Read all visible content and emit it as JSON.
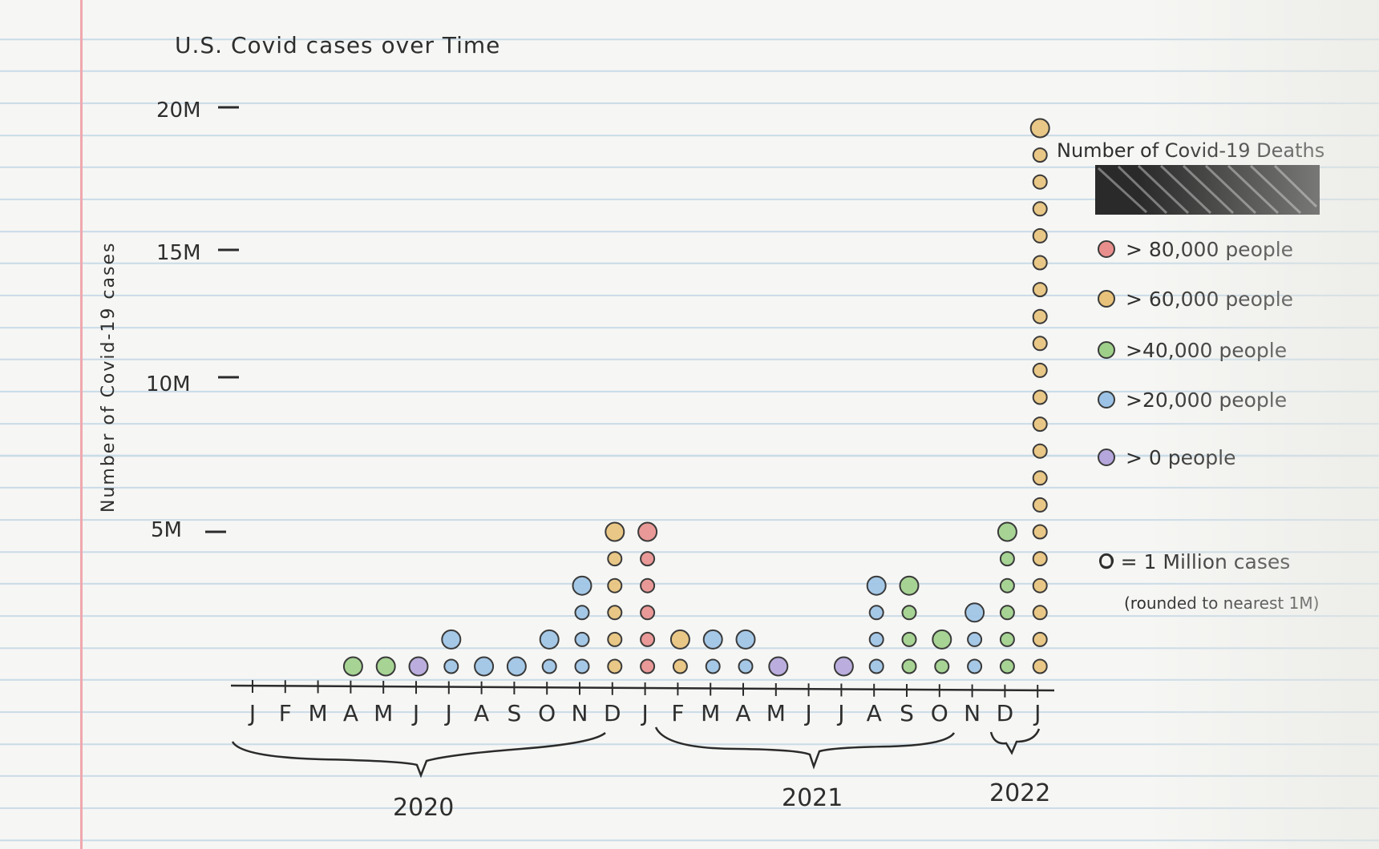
{
  "chart_data": {
    "type": "scatter",
    "title": "U.S. Covid cases over Time",
    "ylabel": "Number of Covid-19 cases",
    "y_ticks": [
      "20M",
      "15M",
      "10M",
      "5M"
    ],
    "y_tick_values": [
      20,
      15,
      10,
      5
    ],
    "x_tick_labels": [
      "J",
      "F",
      "M",
      "A",
      "M",
      "J",
      "J",
      "A",
      "S",
      "O",
      "N",
      "D",
      "J",
      "F",
      "M",
      "A",
      "M",
      "J",
      "J",
      "A",
      "S",
      "O",
      "N",
      "D",
      "J"
    ],
    "year_labels": [
      "2020",
      "2021",
      "2022"
    ],
    "legend": {
      "title": "Number of Covid-19 Deaths",
      "entries": [
        {
          "label": "> 80,000 people",
          "color": "#e88f8d"
        },
        {
          "label": "> 60,000 people",
          "color": "#e8c27a"
        },
        {
          "label": ">40,000 people",
          "color": "#9fd08a"
        },
        {
          "label": ">20,000 people",
          "color": "#9cc3e6"
        },
        {
          "label": "> 0 people",
          "color": "#b5a6dc"
        }
      ],
      "note": "O = 1 Million cases",
      "note_sub": "(rounded to nearest 1M)"
    },
    "unit": "1 circle = 1 million cases",
    "points": [
      {
        "month": "Apr 2020",
        "cases_millions": 1,
        "deaths_level": ">40,000 people"
      },
      {
        "month": "May 2020",
        "cases_millions": 1,
        "deaths_level": ">40,000 people"
      },
      {
        "month": "Jun 2020",
        "cases_millions": 1,
        "deaths_level": "> 0 people"
      },
      {
        "month": "Jul 2020",
        "cases_millions": 2,
        "deaths_level": ">20,000 people"
      },
      {
        "month": "Aug 2020",
        "cases_millions": 1,
        "deaths_level": ">20,000 people"
      },
      {
        "month": "Sep 2020",
        "cases_millions": 1,
        "deaths_level": ">20,000 people"
      },
      {
        "month": "Oct 2020",
        "cases_millions": 2,
        "deaths_level": ">20,000 people"
      },
      {
        "month": "Nov 2020",
        "cases_millions": 4,
        "deaths_level": ">20,000 people"
      },
      {
        "month": "Dec 2020",
        "cases_millions": 6,
        "deaths_level": "> 60,000 people"
      },
      {
        "month": "Jan 2021",
        "cases_millions": 6,
        "deaths_level": "> 80,000 people"
      },
      {
        "month": "Feb 2021",
        "cases_millions": 2,
        "deaths_level": "> 60,000 people"
      },
      {
        "month": "Mar 2021",
        "cases_millions": 2,
        "deaths_level": ">20,000 people"
      },
      {
        "month": "Apr 2021",
        "cases_millions": 2,
        "deaths_level": ">20,000 people"
      },
      {
        "month": "May 2021",
        "cases_millions": 1,
        "deaths_level": "> 0 people"
      },
      {
        "month": "Jul 2021",
        "cases_millions": 1,
        "deaths_level": "> 0 people"
      },
      {
        "month": "Aug 2021",
        "cases_millions": 4,
        "deaths_level": ">20,000 people"
      },
      {
        "month": "Sep 2021",
        "cases_millions": 4,
        "deaths_level": ">40,000 people"
      },
      {
        "month": "Oct 2021",
        "cases_millions": 2,
        "deaths_level": ">40,000 people"
      },
      {
        "month": "Nov 2021",
        "cases_millions": 3,
        "deaths_level": ">20,000 people"
      },
      {
        "month": "Dec 2021",
        "cases_millions": 6,
        "deaths_level": ">40,000 people"
      },
      {
        "month": "Jan 2022",
        "cases_millions": 21,
        "deaths_level": "> 60,000 people"
      }
    ]
  }
}
